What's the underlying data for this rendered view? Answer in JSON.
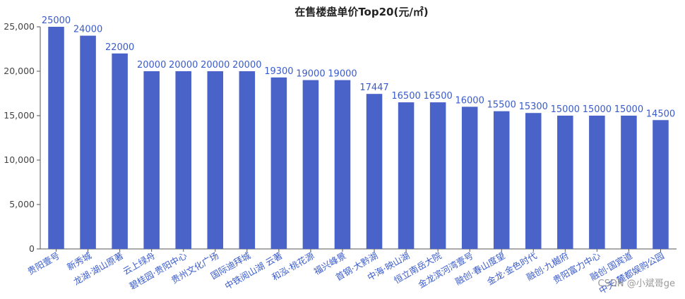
{
  "chart_data": {
    "type": "bar",
    "title": "在售楼盘单价Top20(元/㎡)",
    "xlabel": "",
    "ylabel": "",
    "ylim": [
      0,
      25000
    ],
    "yticks": [
      0,
      5000,
      10000,
      15000,
      20000,
      25000
    ],
    "ytick_labels": [
      "0",
      "5,000",
      "10,000",
      "15,000",
      "20,000",
      "25,000"
    ],
    "grid": false,
    "legend": "none",
    "bar_color": "#4a63c9",
    "categories": [
      "贵阳壹号",
      "新秀城",
      "龙湖·湖山原著",
      "云上绿舟",
      "碧桂园·贵阳中心",
      "贵州文化广场",
      "国际迪拜城",
      "中铁阅山湖 云著",
      "和泓·桃花源",
      "福兴峰景",
      "首钢·大黔湖",
      "中海·映山湖",
      "恒立南岳大院",
      "金龙滨河湾壹号",
      "融创·春山度望",
      "金龙·金色时代",
      "融创·九樾府",
      "贵阳富力中心",
      "融创·国宾道",
      "中天·麓都娱购公园"
    ],
    "values": [
      25000,
      24000,
      22000,
      20000,
      20000,
      20000,
      20000,
      19300,
      19000,
      19000,
      17447,
      16500,
      16500,
      16000,
      15500,
      15300,
      15000,
      15000,
      15000,
      14500
    ]
  },
  "watermark": "CSDN @小斌哥ge"
}
